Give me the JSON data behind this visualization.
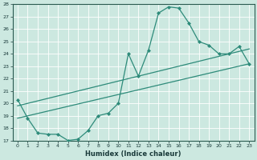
{
  "xlabel": "Humidex (Indice chaleur)",
  "bg_color": "#cce8e0",
  "grid_color": "#ffffff",
  "line_color": "#2e8b7a",
  "xlim": [
    -0.5,
    23.5
  ],
  "ylim": [
    17,
    28
  ],
  "xticks": [
    0,
    1,
    2,
    3,
    4,
    5,
    6,
    7,
    8,
    9,
    10,
    11,
    12,
    13,
    14,
    15,
    16,
    17,
    18,
    19,
    20,
    21,
    22,
    23
  ],
  "yticks": [
    17,
    18,
    19,
    20,
    21,
    22,
    23,
    24,
    25,
    26,
    27,
    28
  ],
  "line1_x": [
    0,
    1,
    2,
    3,
    4,
    5,
    6,
    7,
    8,
    9,
    10,
    11,
    12,
    13,
    14,
    15,
    16,
    17,
    18,
    19,
    20,
    21,
    22,
    23
  ],
  "line1_y": [
    20.3,
    18.8,
    17.6,
    17.5,
    17.5,
    17.0,
    17.1,
    17.8,
    19.0,
    19.2,
    20.0,
    24.0,
    22.2,
    24.3,
    27.3,
    27.8,
    27.7,
    26.5,
    25.0,
    24.7,
    24.0,
    24.0,
    24.6,
    23.2
  ],
  "line2_x": [
    0,
    23
  ],
  "line2_y": [
    18.8,
    23.2
  ],
  "line3_x": [
    0,
    23
  ],
  "line3_y": [
    19.8,
    24.4
  ]
}
